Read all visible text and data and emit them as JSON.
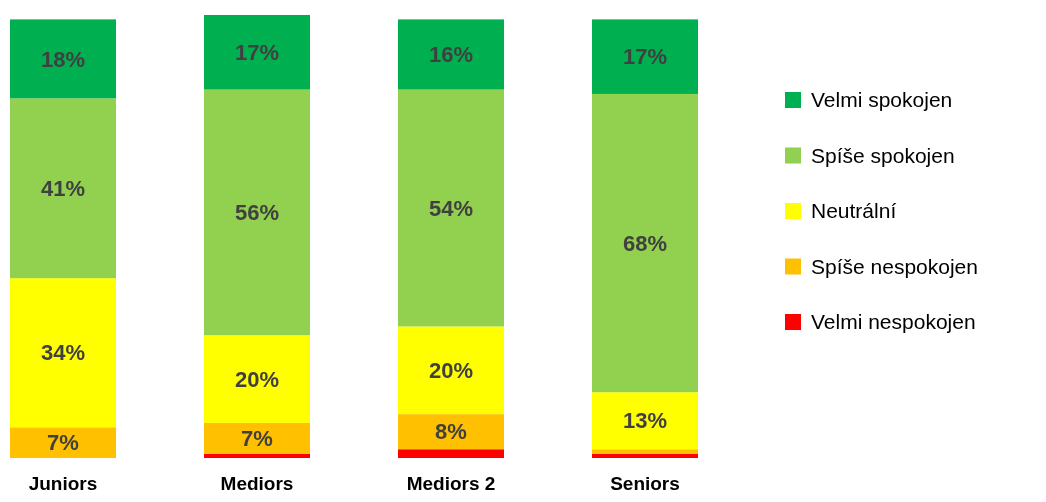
{
  "chart_data": {
    "type": "bar",
    "stacked": true,
    "categories": [
      "Juniors",
      "Mediors",
      "Mediors 2",
      "Seniors"
    ],
    "ylim": [
      0,
      101
    ],
    "tick_labels": "x",
    "legend": "right",
    "series": [
      {
        "name": "Velmi nespokojen",
        "color": "#ff0000",
        "values": [
          0,
          1,
          2,
          1
        ],
        "value_labels": [
          null,
          null,
          null,
          null
        ]
      },
      {
        "name": "Spíše nespokojen",
        "color": "#ffc000",
        "values": [
          7,
          7,
          8,
          1
        ],
        "value_labels": [
          "7%",
          "7%",
          "8%",
          null
        ]
      },
      {
        "name": "Neutrální",
        "color": "#ffff00",
        "values": [
          34,
          20,
          20,
          13
        ],
        "value_labels": [
          "34%",
          "20%",
          "20%",
          "13%"
        ]
      },
      {
        "name": "Spíše spokojen",
        "color": "#92d050",
        "values": [
          41,
          56,
          54,
          68
        ],
        "value_labels": [
          "41%",
          "56%",
          "54%",
          "68%"
        ]
      },
      {
        "name": "Velmi spokojen",
        "color": "#00b050",
        "values": [
          18,
          17,
          16,
          17
        ],
        "value_labels": [
          "18%",
          "17%",
          "16%",
          "17%"
        ]
      }
    ]
  }
}
